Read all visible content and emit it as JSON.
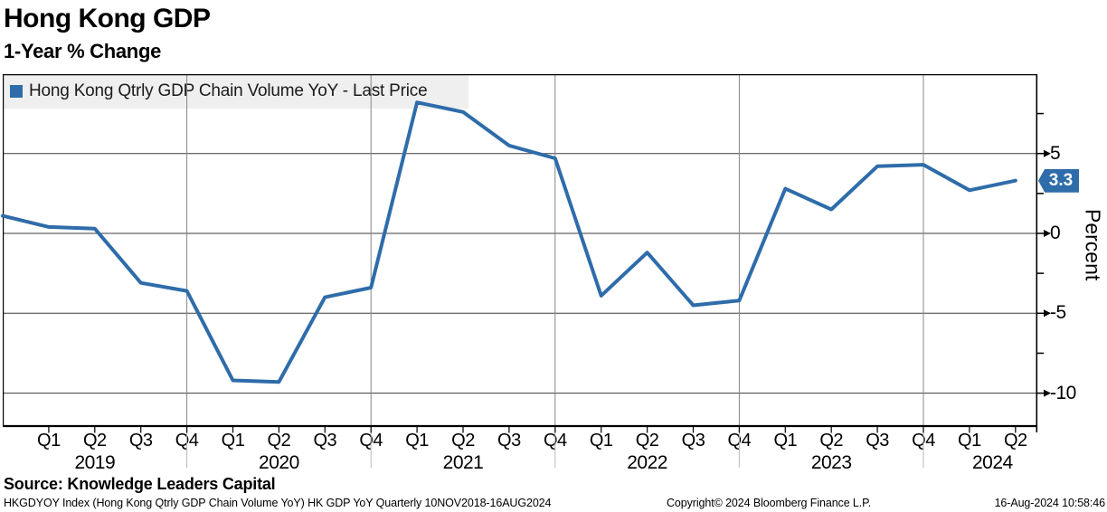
{
  "header": {
    "title": "Hong Kong GDP",
    "subtitle": "1-Year % Change"
  },
  "legend": {
    "label": "Hong Kong Qtrly GDP Chain Volume YoY - Last Price",
    "swatch_color": "#2e6caa"
  },
  "last_price_badge": "3.3",
  "chart_data": {
    "type": "line",
    "title": "Hong Kong GDP - 1-Year % Change",
    "x": [
      "Q4 2018",
      "Q1 2019",
      "Q2 2019",
      "Q3 2019",
      "Q4 2019",
      "Q1 2020",
      "Q2 2020",
      "Q3 2020",
      "Q4 2020",
      "Q1 2021",
      "Q2 2021",
      "Q3 2021",
      "Q4 2021",
      "Q1 2022",
      "Q2 2022",
      "Q3 2022",
      "Q4 2022",
      "Q1 2023",
      "Q2 2023",
      "Q3 2023",
      "Q4 2023",
      "Q1 2024",
      "Q2 2024"
    ],
    "series": [
      {
        "name": "Hong Kong Qtrly GDP Chain Volume YoY - Last Price",
        "color": "#2e6caa",
        "values": [
          1.1,
          0.4,
          0.3,
          -3.1,
          -3.6,
          -9.2,
          -9.3,
          -4.0,
          -3.4,
          8.2,
          7.6,
          5.5,
          4.7,
          -3.9,
          -1.2,
          -4.5,
          -4.2,
          2.8,
          1.5,
          4.2,
          4.3,
          2.7,
          3.3
        ]
      }
    ],
    "xlabel": "",
    "ylabel": "Percent",
    "ylim": [
      -12.1,
      10
    ],
    "grid": true,
    "legend_position": "bottom-left",
    "x_axis": {
      "quarter_labels": [
        "Q1",
        "Q2",
        "Q3",
        "Q4",
        "Q1",
        "Q2",
        "Q3",
        "Q4",
        "Q1",
        "Q2",
        "Q3",
        "Q4",
        "Q1",
        "Q2",
        "Q3",
        "Q4",
        "Q1",
        "Q2",
        "Q3",
        "Q4",
        "Q1",
        "Q2"
      ],
      "year_labels": [
        "2019",
        "2020",
        "2021",
        "2022",
        "2023",
        "2024"
      ],
      "year_label_index_positions": [
        2,
        6,
        10,
        14,
        18,
        21.5
      ],
      "year_gridline_indices": [
        4,
        8,
        12,
        16,
        20
      ]
    },
    "y_axis": {
      "label": "Percent",
      "major_ticks": [
        5,
        0,
        -5,
        -10
      ],
      "minor_ticks": [
        7.5,
        2.5,
        -2.5,
        -7.5
      ]
    }
  },
  "source_line": "Source: Knowledge Leaders Capital",
  "footer": {
    "left": "HKGDYOY Index (Hong Kong Qtrly GDP Chain Volume YoY) HK GDP YoY  Quarterly 10NOV2018-16AUG2024",
    "center": "Copyright© 2024 Bloomberg Finance L.P.",
    "right": "16-Aug-2024 10:58:46"
  }
}
